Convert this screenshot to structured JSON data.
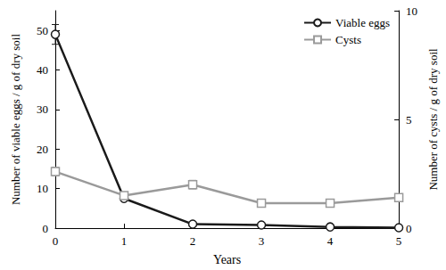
{
  "chart_data": {
    "type": "line",
    "x": [
      0,
      1,
      2,
      3,
      4,
      5
    ],
    "xlabel": "Years",
    "ylabel": "Number of viable eggs / g of dry soil",
    "y2label": "Number of cysts / g of dry soil",
    "xlim": [
      0,
      5
    ],
    "xticks": [
      0,
      1,
      2,
      3,
      4,
      5
    ],
    "ylim": [
      0,
      55
    ],
    "yticks": [
      0,
      10,
      20,
      30,
      40,
      50
    ],
    "y2lim": [
      0,
      10
    ],
    "y2ticks": [
      0,
      5,
      10
    ],
    "grid": false,
    "legend": "upper right",
    "series": [
      {
        "name": "Viable eggs",
        "color": "#1a1a1a",
        "marker": "circle",
        "line_style": "solid",
        "values": [
          49,
          7.5,
          1,
          0.8,
          0.3,
          0.1
        ],
        "errors": [
          2.5,
          0.6,
          0.3,
          0.3,
          0.1,
          0.1
        ]
      },
      {
        "name": "Cysts",
        "color": "#9a9a9a",
        "marker": "square",
        "line_style": "solid",
        "axis": "y2",
        "values": [
          2.6,
          1.5,
          2.0,
          1.15,
          1.15,
          1.4
        ],
        "errors": [
          0.2,
          0.1,
          0.2,
          0.15,
          0.1,
          0.1
        ]
      }
    ]
  }
}
